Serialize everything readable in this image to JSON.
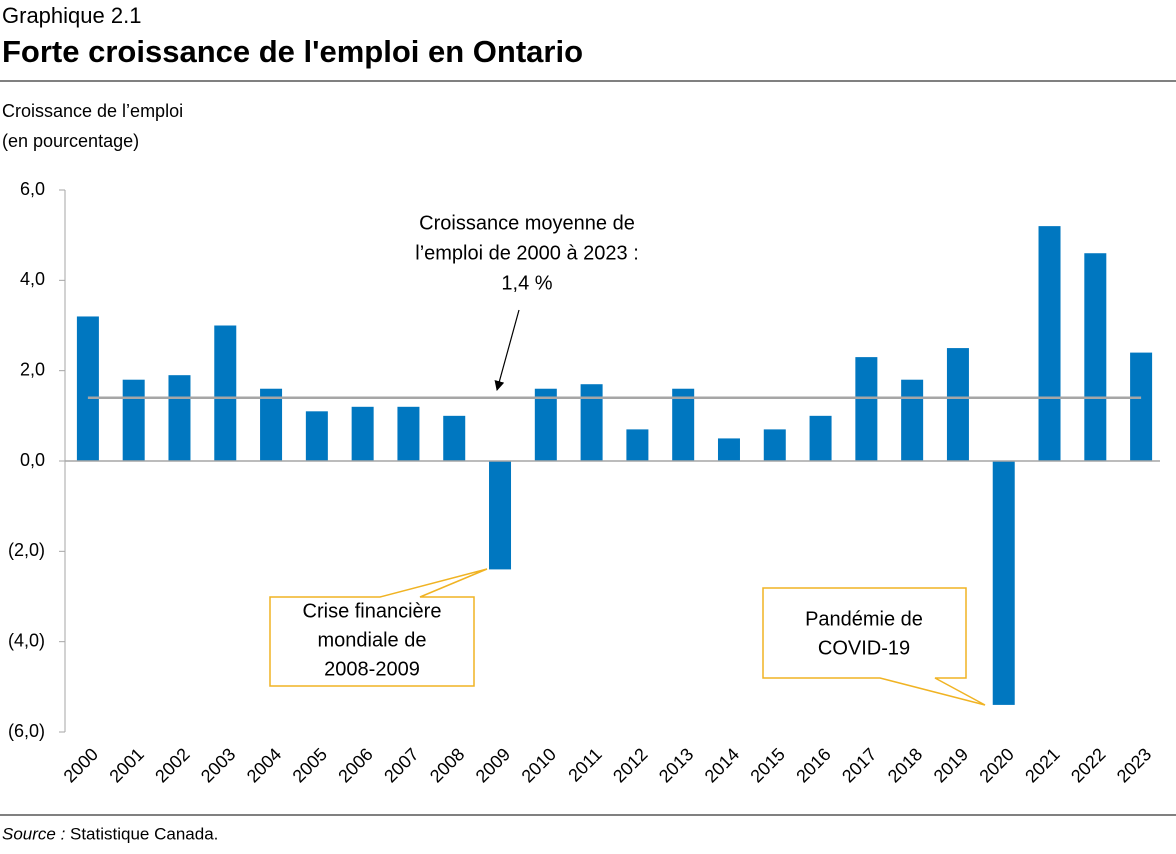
{
  "chart_data": {
    "type": "bar",
    "subtitle": "Graphique 2.1",
    "title": "Forte croissance de l'emploi en Ontario",
    "ylabel": [
      "Croissance de l’emploi",
      "(en pourcentage)"
    ],
    "categories": [
      "2000",
      "2001",
      "2002",
      "2003",
      "2004",
      "2005",
      "2006",
      "2007",
      "2008",
      "2009",
      "2010",
      "2011",
      "2012",
      "2013",
      "2014",
      "2015",
      "2016",
      "2017",
      "2018",
      "2019",
      "2020",
      "2021",
      "2022",
      "2023"
    ],
    "values": [
      3.2,
      1.8,
      1.9,
      3.0,
      1.6,
      1.1,
      1.2,
      1.2,
      1.0,
      -2.4,
      1.6,
      1.7,
      0.7,
      1.6,
      0.5,
      0.7,
      1.0,
      2.3,
      1.8,
      2.5,
      -5.4,
      5.2,
      4.6,
      2.4
    ],
    "color": "#0077c0",
    "ylim": [
      -6,
      6
    ],
    "yticks": [
      {
        "value": -6,
        "label": "(6,0)"
      },
      {
        "value": -4,
        "label": "(4,0)"
      },
      {
        "value": -2,
        "label": "(2,0)"
      },
      {
        "value": 0,
        "label": "0,0"
      },
      {
        "value": 2,
        "label": "2,0"
      },
      {
        "value": 4,
        "label": "4,0"
      },
      {
        "value": 6,
        "label": "6,0"
      }
    ],
    "average_line": {
      "value": 1.4,
      "color": "#a6a6a6",
      "label": [
        "Croissance moyenne de",
        "l’emploi de 2000 à 2023 :",
        "1,4 %"
      ]
    },
    "annotations": [
      {
        "lines": [
          "Crise financière",
          "mondiale de",
          "2008-2009"
        ],
        "color": "#f0b323"
      },
      {
        "lines": [
          "Pandémie de",
          "COVID-19"
        ],
        "color": "#f0b323"
      }
    ],
    "source_label": "Source :",
    "source": "Statistique Canada."
  }
}
